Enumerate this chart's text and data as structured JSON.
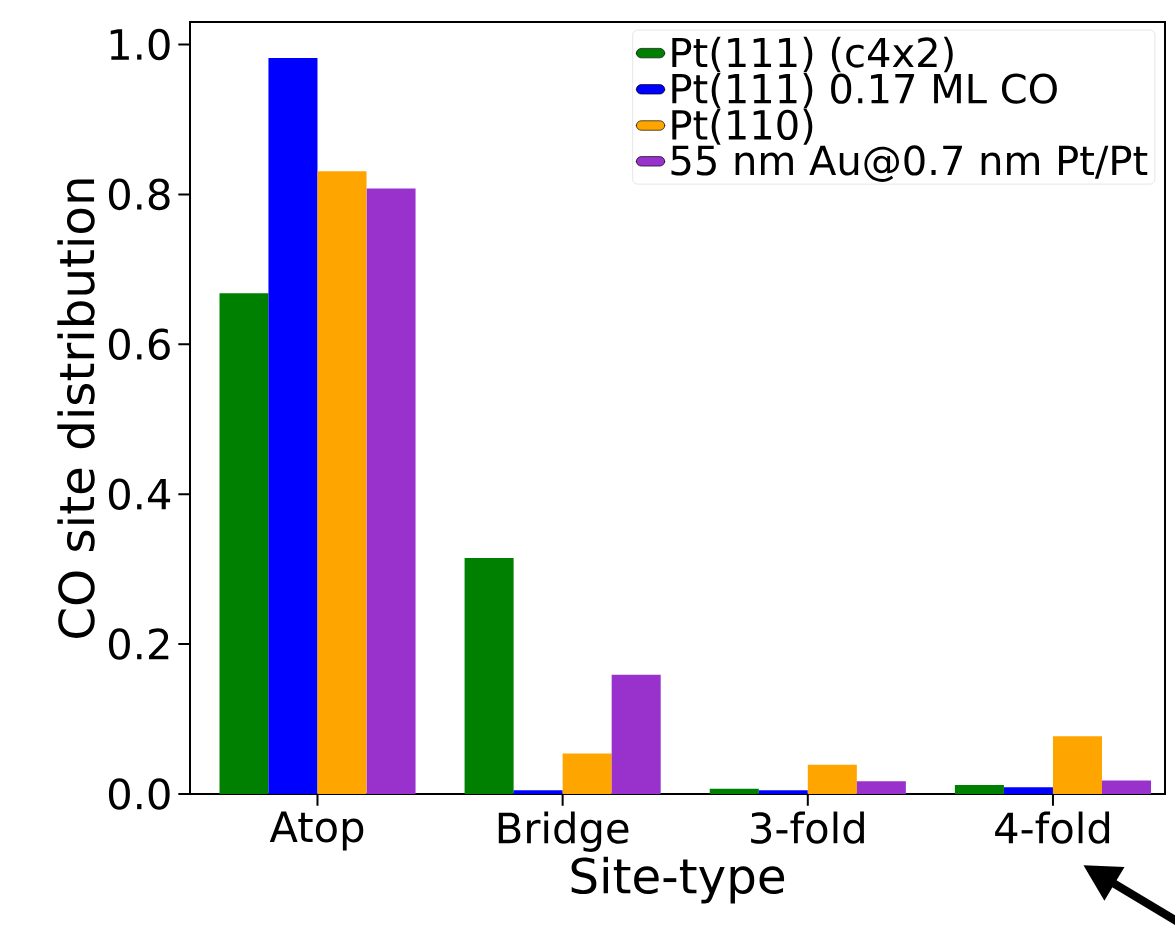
{
  "chart_data": {
    "type": "bar",
    "xlabel": "Site-type",
    "ylabel": "CO site distribution",
    "categories": [
      "Atop",
      "Bridge",
      "3-fold",
      "4-fold"
    ],
    "series": [
      {
        "name": "Pt(111) (c4x2)",
        "color": "#008000",
        "values": [
          0.668,
          0.315,
          0.007,
          0.012
        ]
      },
      {
        "name": "Pt(111) 0.17 ML CO",
        "color": "#0000ff",
        "values": [
          0.982,
          0.005,
          0.005,
          0.009
        ]
      },
      {
        "name": "Pt(110)",
        "color": "#ffa500",
        "values": [
          0.831,
          0.054,
          0.039,
          0.077
        ]
      },
      {
        "name": "55 nm Au@0.7 nm Pt/Pt",
        "color": "#9932cc",
        "values": [
          0.808,
          0.159,
          0.017,
          0.018
        ]
      }
    ],
    "ylim": [
      0,
      1.03
    ],
    "yticks": [
      {
        "value": 0,
        "label": "0.0"
      },
      {
        "value": 0.2,
        "label": "0.2"
      },
      {
        "value": 0.4,
        "label": "0.4"
      },
      {
        "value": 0.6,
        "label": "0.6"
      },
      {
        "value": 0.8,
        "label": "0.8"
      },
      {
        "value": 1,
        "label": "1.0"
      }
    ],
    "legend": "top right",
    "grid": false
  }
}
